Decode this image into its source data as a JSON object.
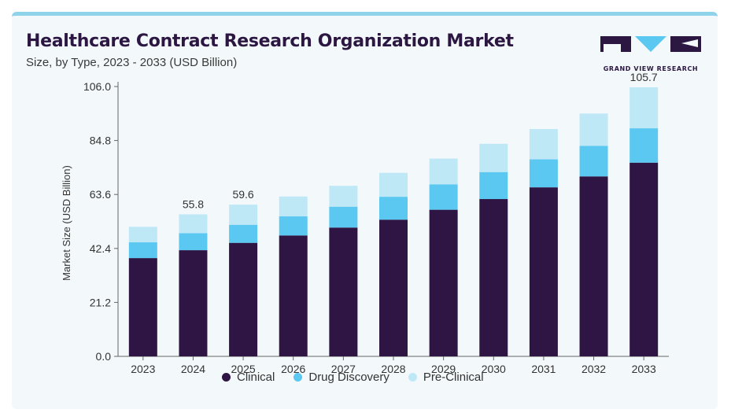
{
  "header": {
    "title": "Healthcare Contract Research Organization Market",
    "subtitle": "Size, by Type, 2023 - 2033 (USD Billion)"
  },
  "logo": {
    "text": "GRAND VIEW RESEARCH",
    "color": "#2b1742",
    "accent": "#5bc8f2"
  },
  "chart_data": {
    "type": "bar",
    "stacked": true,
    "categories": [
      "2023",
      "2024",
      "2025",
      "2026",
      "2027",
      "2028",
      "2029",
      "2030",
      "2031",
      "2032",
      "2033"
    ],
    "series": [
      {
        "name": "Clinical",
        "color": "#2e1543",
        "values": [
          38.6,
          41.7,
          44.6,
          47.5,
          50.6,
          53.7,
          57.6,
          61.8,
          66.4,
          70.7,
          76.1
        ]
      },
      {
        "name": "Drug Discovery",
        "color": "#5bc8f2",
        "values": [
          6.2,
          6.7,
          7.1,
          7.5,
          8.2,
          9.0,
          10.0,
          10.6,
          11.0,
          12.0,
          13.5
        ]
      },
      {
        "name": "Pre-Clinical",
        "color": "#bfe8f7",
        "values": [
          6.1,
          7.4,
          7.9,
          7.8,
          8.2,
          9.4,
          10.1,
          11.1,
          11.9,
          12.7,
          16.1
        ]
      }
    ],
    "totals_labels": [
      {
        "category": "2024",
        "text": "55.8"
      },
      {
        "category": "2025",
        "text": "59.6"
      },
      {
        "category": "2033",
        "text": "105.7"
      }
    ],
    "y_ticks": [
      "0.0",
      "21.2",
      "42.4",
      "63.6",
      "84.8",
      "106.0"
    ],
    "ylim": [
      0,
      106.0
    ],
    "ylabel": "Market Size (USD Billion)",
    "xlabel": "",
    "grid": false,
    "legend_position": "bottom"
  }
}
